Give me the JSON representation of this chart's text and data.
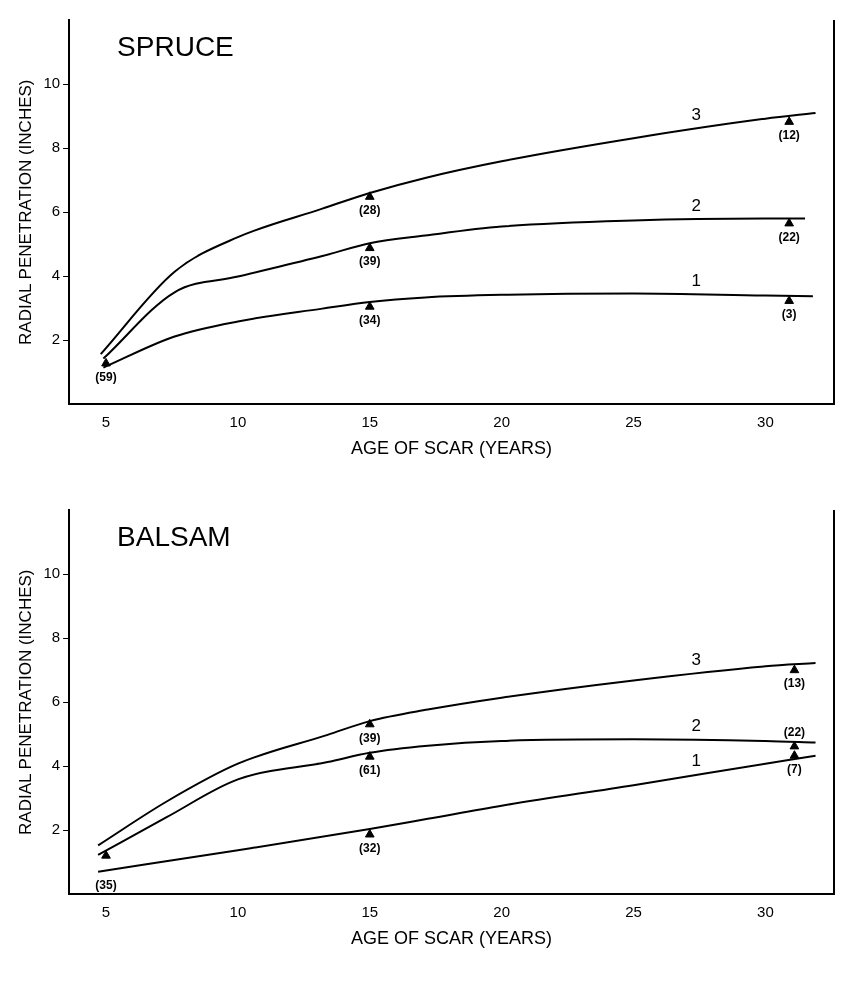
{
  "chart_data": [
    {
      "type": "line",
      "title": "SPRUCE",
      "xlabel": "AGE OF SCAR (YEARS)",
      "ylabel": "RADIAL PENETRATION (INCHES)",
      "xlim": [
        3.6,
        32.6
      ],
      "xticks": [
        5,
        10,
        15,
        20,
        25,
        30
      ],
      "ylim": [
        0,
        12
      ],
      "yticks": [
        2,
        4,
        6,
        8,
        10
      ],
      "line_style": "solid",
      "series": [
        {
          "name": "3",
          "type": "line",
          "color": "#000000",
          "x": [
            4.8,
            7.6,
            10,
            13.2,
            15,
            17.1,
            20,
            25,
            30,
            31.9
          ],
          "values": [
            1.57,
            4.14,
            5.22,
            6.11,
            6.6,
            7.07,
            7.59,
            8.31,
            8.92,
            9.1
          ]
        },
        {
          "name": "2",
          "type": "line",
          "color": "#000000",
          "x": [
            4.9,
            7.6,
            10,
            13.2,
            15,
            17.1,
            20,
            25,
            30,
            31.5
          ],
          "values": [
            1.43,
            3.5,
            3.99,
            4.63,
            5.03,
            5.27,
            5.55,
            5.74,
            5.8,
            5.8
          ]
        },
        {
          "name": "1",
          "type": "line",
          "color": "#000000",
          "x": [
            4.9,
            7.6,
            10,
            13.2,
            15,
            17.1,
            20,
            25,
            30,
            31.8
          ],
          "values": [
            1.15,
            2.12,
            2.59,
            2.99,
            3.2,
            3.34,
            3.42,
            3.46,
            3.4,
            3.38
          ]
        },
        {
          "type": "scatter",
          "marker": "triangle",
          "color": "#000000",
          "x": [
            5,
            15,
            15,
            15,
            30.9,
            30.9,
            30.9
          ],
          "values": [
            1.28,
            6.48,
            4.88,
            3.05,
            8.82,
            5.65,
            3.23
          ]
        }
      ],
      "annotations": [
        {
          "text": "(59)",
          "x": 5,
          "y": 1.28
        },
        {
          "text": "(28)",
          "x": 15,
          "y": 6.48
        },
        {
          "text": "(39)",
          "x": 15,
          "y": 4.88
        },
        {
          "text": "(34)",
          "x": 15,
          "y": 3.05
        },
        {
          "text": "(12)",
          "x": 30.9,
          "y": 8.82
        },
        {
          "text": "(22)",
          "x": 30.9,
          "y": 5.65
        },
        {
          "text": "(3)",
          "x": 30.9,
          "y": 3.23
        }
      ]
    },
    {
      "type": "line",
      "title": "BALSAM",
      "xlabel": "AGE OF SCAR (YEARS)",
      "ylabel": "RADIAL PENETRATION (INCHES)",
      "xlim": [
        3.6,
        32.6
      ],
      "xticks": [
        5,
        10,
        15,
        20,
        25,
        30
      ],
      "ylim": [
        0,
        12
      ],
      "yticks": [
        2,
        4,
        6,
        8,
        10
      ],
      "line_style": "solid",
      "series": [
        {
          "name": "3",
          "type": "line",
          "color": "#000000",
          "x": [
            4.7,
            7.3,
            10,
            13.4,
            15,
            17.2,
            20,
            25,
            30,
            31.9
          ],
          "values": [
            1.53,
            2.9,
            4.08,
            4.98,
            5.41,
            5.77,
            6.14,
            6.68,
            7.12,
            7.22
          ]
        },
        {
          "name": "2",
          "type": "line",
          "color": "#000000",
          "x": [
            4.7,
            7.3,
            10,
            13.4,
            15,
            17.2,
            20,
            25,
            30,
            31.9
          ],
          "values": [
            1.23,
            2.41,
            3.59,
            4.13,
            4.42,
            4.64,
            4.79,
            4.84,
            4.79,
            4.74
          ]
        },
        {
          "name": "1",
          "type": "line",
          "color": "#000000",
          "x": [
            4.7,
            10,
            15,
            17.2,
            20,
            25,
            30,
            31.9
          ],
          "values": [
            0.71,
            1.38,
            2.04,
            2.36,
            2.77,
            3.41,
            4.08,
            4.33
          ]
        },
        {
          "type": "scatter",
          "marker": "triangle",
          "color": "#000000",
          "x": [
            5,
            15,
            15,
            15,
            31.1,
            31.1,
            31.1
          ],
          "values": [
            1.21,
            5.31,
            4.3,
            1.87,
            7.0,
            4.62,
            4.33
          ]
        }
      ],
      "annotations": [
        {
          "text": "(35)",
          "x": 5,
          "y": 1.21
        },
        {
          "text": "(39)",
          "x": 15,
          "y": 5.31
        },
        {
          "text": "(61)",
          "x": 15,
          "y": 4.3
        },
        {
          "text": "(32)",
          "x": 15,
          "y": 1.87
        },
        {
          "text": "(13)",
          "x": 31.1,
          "y": 7.0
        },
        {
          "text": "(22)",
          "x": 31.1,
          "y": 4.62
        },
        {
          "text": "(7)",
          "x": 31.1,
          "y": 4.33
        }
      ]
    }
  ]
}
